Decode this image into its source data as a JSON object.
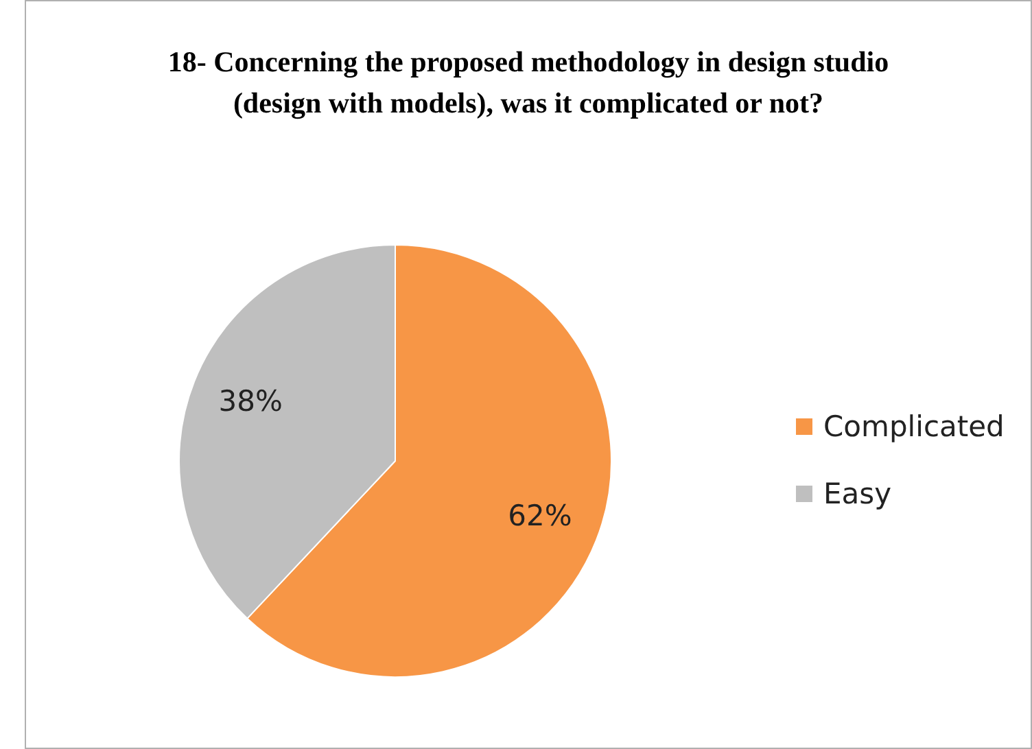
{
  "chart_data": {
    "type": "pie",
    "title": "18-  Concerning the proposed methodology in design studio (design with models), was it complicated or not?",
    "categories": [
      "Complicated",
      "Easy"
    ],
    "values": [
      62,
      38
    ],
    "colors": [
      "#f79646",
      "#bfbfbf"
    ],
    "value_labels": [
      "62%",
      "38%"
    ],
    "legend": "right"
  }
}
